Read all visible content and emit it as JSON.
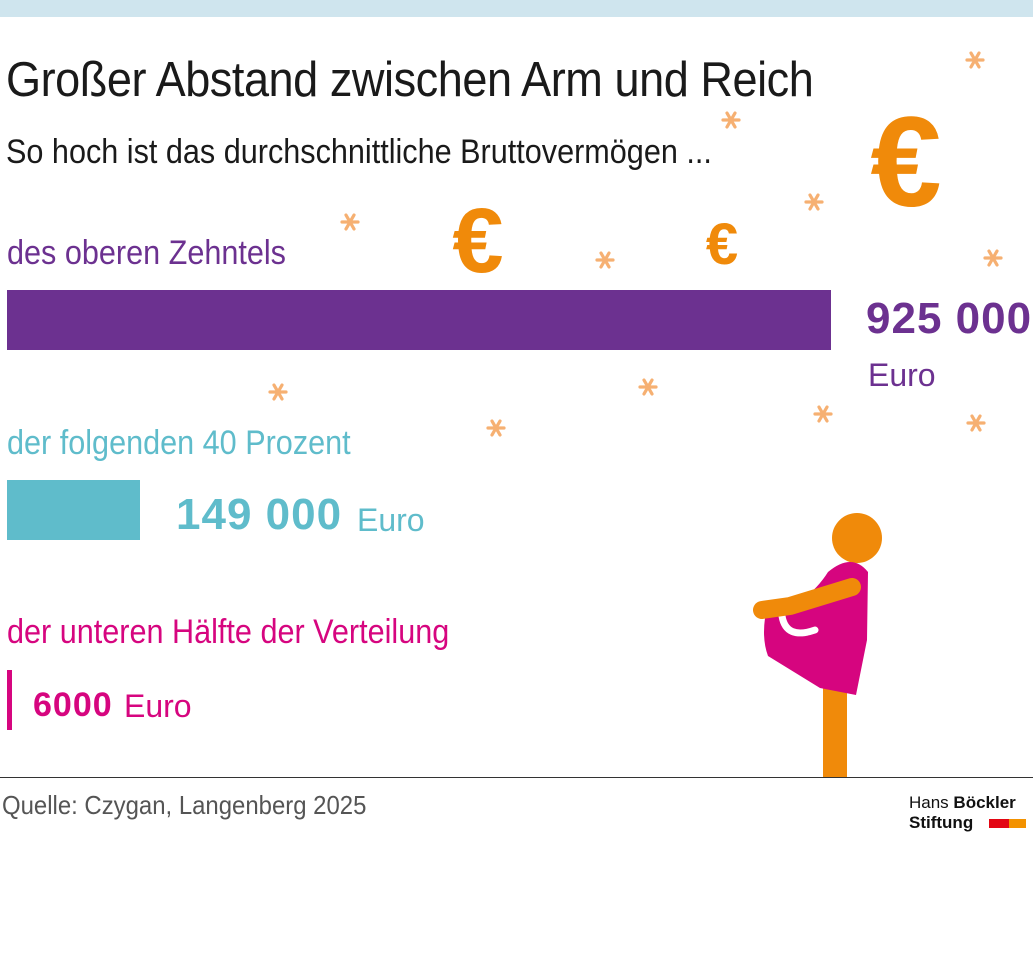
{
  "header": {
    "title": "Großer Abstand zwischen Arm und Reich",
    "subtitle": "So hoch ist das durchschnittliche Bruttovermögen ..."
  },
  "colors": {
    "top": "#6c3190",
    "middle": "#5fbccb",
    "bottom": "#d6057f",
    "euro_orange": "#f08a0a",
    "asterisk": "#f6b072",
    "figure_dress": "#d6057f",
    "figure_body": "#f08a0a"
  },
  "chart_data": {
    "type": "bar",
    "orientation": "horizontal",
    "unit": "Euro",
    "categories": [
      "des oberen Zehntels",
      "der folgenden 40 Prozent",
      "der unteren Hälfte der Verteilung"
    ],
    "values": [
      925000,
      149000,
      6000
    ],
    "value_labels": [
      "925 000",
      "149 000",
      "6000"
    ],
    "xlim": [
      0,
      925000
    ],
    "grid": false,
    "legend": "none"
  },
  "groups": [
    {
      "label": "des oberen Zehntels",
      "value_text": "925 000",
      "unit": "Euro"
    },
    {
      "label": "der folgenden 40 Prozent",
      "value_text": "149 000",
      "unit": "Euro"
    },
    {
      "label": "der unteren Hälfte der Verteilung",
      "value_text": "6000",
      "unit": "Euro"
    }
  ],
  "decoration": {
    "euro_symbol": "€",
    "icons": [
      "euro-coin-icon",
      "asterisk-icon",
      "person-figure-icon"
    ]
  },
  "footer": {
    "source": "Quelle: Czygan, Langenberg 2025",
    "logo_line1_a": "Hans ",
    "logo_line1_b": "Böckler",
    "logo_line2": "Stiftung"
  }
}
